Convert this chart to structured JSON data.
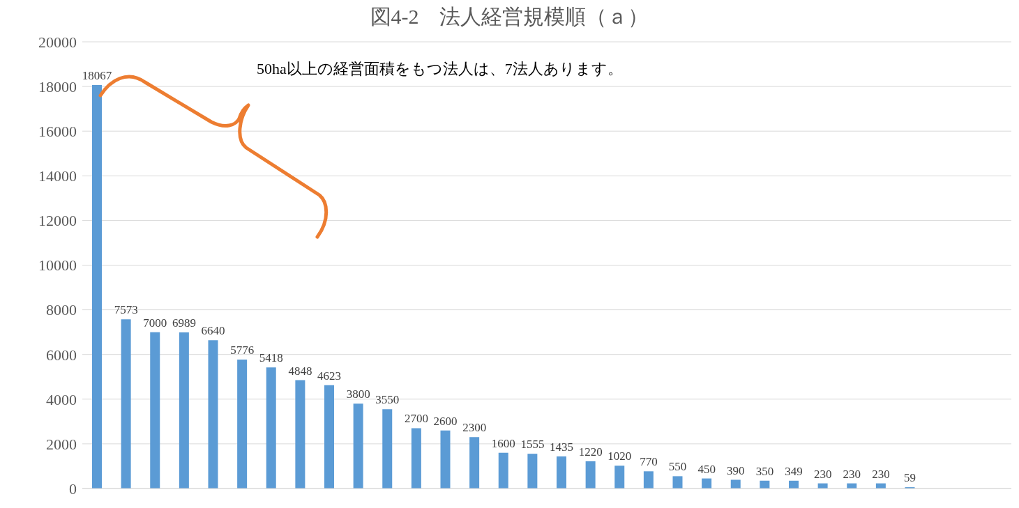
{
  "chart_data": {
    "type": "bar",
    "title": "図4-2　法人経営規模順（ａ）",
    "annotations": [
      "50ha以上の経営面積をもつ法人は、7法人あります。"
    ],
    "categories": [
      null,
      null,
      null,
      null,
      null,
      null,
      null,
      null,
      null,
      null,
      null,
      null,
      null,
      null,
      null,
      null,
      null,
      null,
      null,
      null,
      null,
      null,
      null,
      null,
      null,
      null,
      null,
      null,
      null,
      null,
      null,
      null
    ],
    "values": [
      18067,
      7573,
      7000,
      6989,
      6640,
      5776,
      5418,
      4848,
      4623,
      3800,
      3550,
      2700,
      2600,
      2300,
      1600,
      1555,
      1435,
      1220,
      1020,
      770,
      550,
      450,
      390,
      350,
      349,
      230,
      230,
      230,
      59,
      null,
      null,
      null
    ],
    "color": "#5b9bd5",
    "ylim": [
      0,
      20000
    ],
    "yticks": [
      0,
      2000,
      4000,
      6000,
      8000,
      10000,
      12000,
      14000,
      16000,
      18000,
      20000
    ],
    "grid": "y",
    "data_labels": true,
    "tick_labels": "y"
  }
}
